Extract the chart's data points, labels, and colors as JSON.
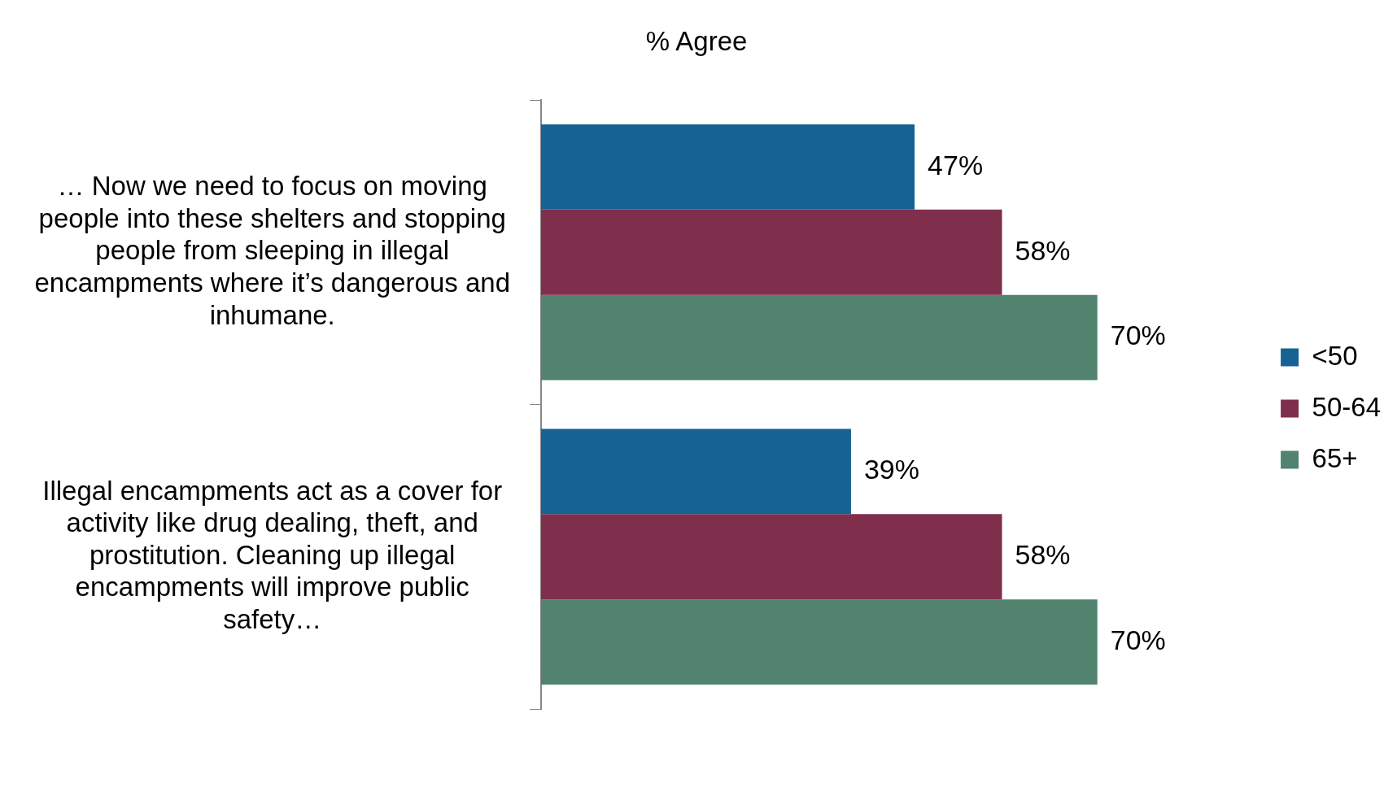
{
  "chart_data": {
    "type": "bar",
    "orientation": "horizontal",
    "tick_labels": "y",
    "title": "% Agree",
    "categories": [
      "… Now we need to focus on moving people into these shelters and stopping people from sleeping in illegal encampments where it’s dangerous and inhumane.",
      "Illegal encampments act as a cover for activity like drug dealing, theft, and prostitution. Cleaning up illegal encampments will improve public safety…"
    ],
    "series": [
      {
        "name": "<50",
        "color": "#156293",
        "values": [
          47,
          39
        ],
        "value_labels": [
          "47%",
          "39%"
        ]
      },
      {
        "name": "50-64",
        "color": "#7f2f4c",
        "values": [
          58,
          58
        ],
        "value_labels": [
          "58%",
          "58%"
        ]
      },
      {
        "name": "65+",
        "color": "#51836f",
        "values": [
          70,
          70
        ],
        "value_labels": [
          "70%",
          "70%"
        ]
      }
    ],
    "legend": "right"
  }
}
